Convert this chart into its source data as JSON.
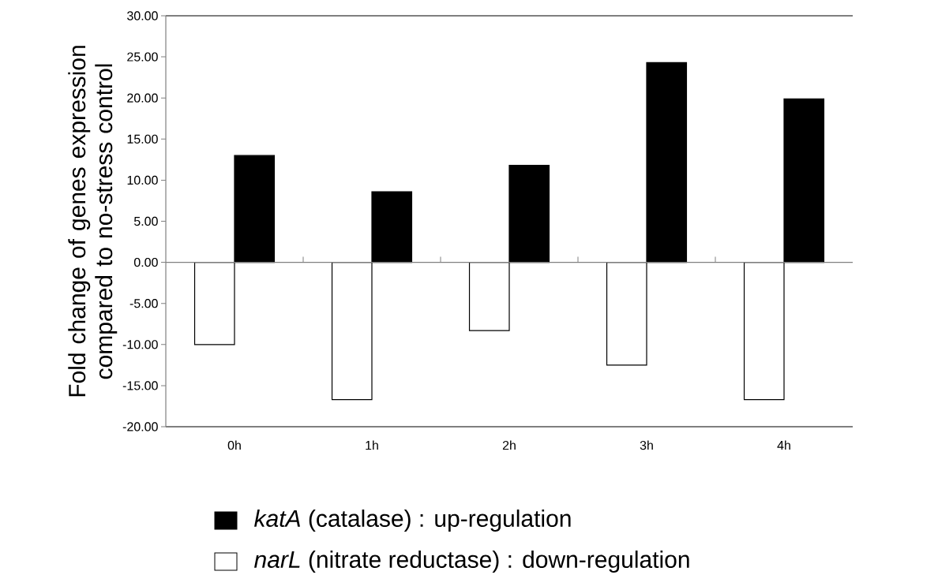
{
  "chart_data": {
    "type": "bar",
    "ylabel": "Fold change of genes expression compared to no-stress control",
    "categories": [
      "0h",
      "1h",
      "2h",
      "3h",
      "4h"
    ],
    "series": [
      {
        "name": "*katA* (catalase) : up-regulation",
        "color": "#000000",
        "values": [
          13.0,
          8.6,
          11.8,
          24.3,
          19.9
        ]
      },
      {
        "name": "*narL* (nitrate reductase) : down-regulation",
        "color": "#ffffff",
        "values": [
          -10.0,
          -16.7,
          -8.3,
          -12.5,
          -16.7
        ]
      }
    ],
    "ylim": [
      -20,
      30
    ],
    "yticks": [
      {
        "value": -20,
        "label": "-20.00"
      },
      {
        "value": -15,
        "label": "-15.00"
      },
      {
        "value": -10,
        "label": "-10.00"
      },
      {
        "value": -5,
        "label": "-5.00"
      },
      {
        "value": 0,
        "label": "0.00"
      },
      {
        "value": 5,
        "label": "5.00"
      },
      {
        "value": 10,
        "label": "10.00"
      },
      {
        "value": 15,
        "label": "15.00"
      },
      {
        "value": 20,
        "label": "20.00"
      },
      {
        "value": 25,
        "label": "25.00"
      },
      {
        "value": 30,
        "label": "30.00"
      }
    ],
    "legend": "bottom"
  }
}
